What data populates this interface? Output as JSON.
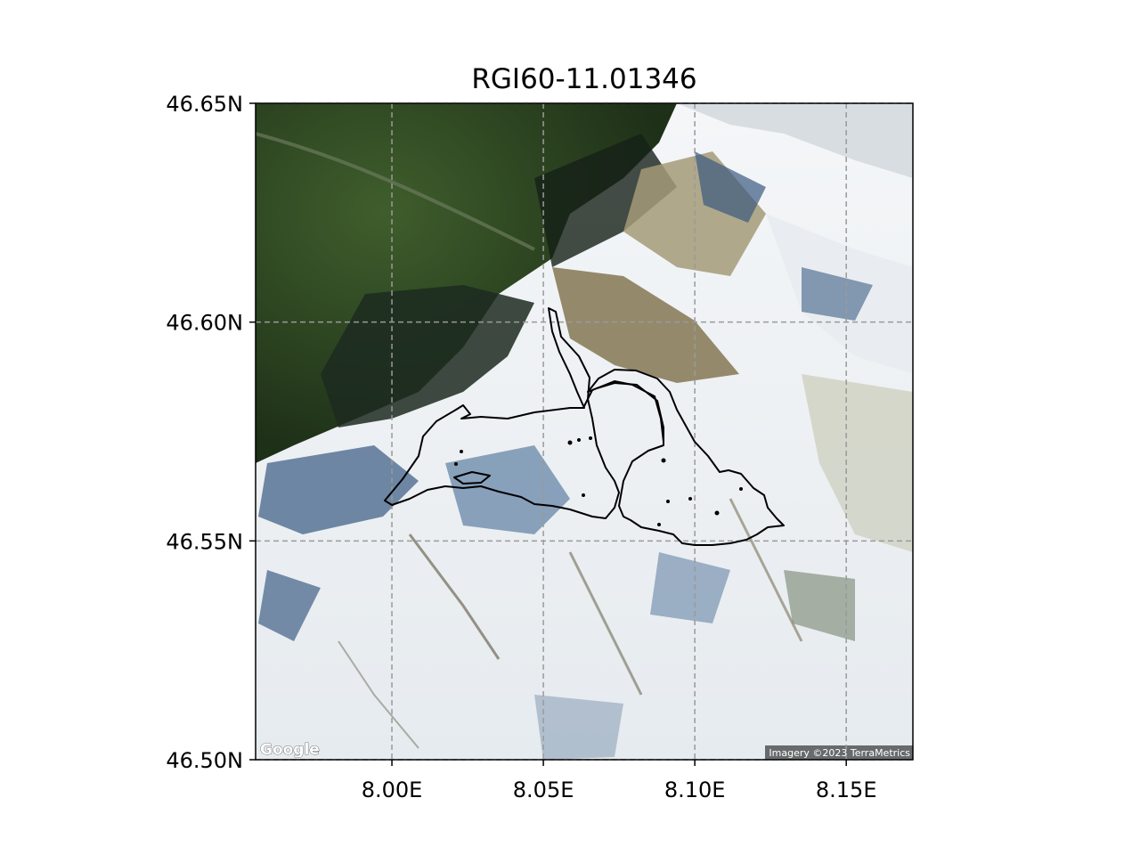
{
  "map": {
    "title": "RGI60-11.01346",
    "lon_range": [
      7.955,
      8.172
    ],
    "lat_range": [
      46.5,
      46.65
    ],
    "lon_ticks": [
      {
        "value": 8.0,
        "label": "8.00E"
      },
      {
        "value": 8.05,
        "label": "8.05E"
      },
      {
        "value": 8.1,
        "label": "8.10E"
      },
      {
        "value": 8.15,
        "label": "8.15E"
      }
    ],
    "lat_ticks": [
      {
        "value": 46.5,
        "label": "46.50N"
      },
      {
        "value": 46.55,
        "label": "46.55N"
      },
      {
        "value": 46.6,
        "label": "46.60N"
      },
      {
        "value": 46.65,
        "label": "46.65N"
      }
    ],
    "grid": true,
    "basemap_logo": "Google",
    "attribution": "Imagery ©2023 TerraMetrics",
    "colors": {
      "outline": "#000000",
      "gridline": "#9a9a9a",
      "forest": "#2f4a24",
      "snow": "#eef2f6",
      "rock": "#8c8060"
    }
  }
}
